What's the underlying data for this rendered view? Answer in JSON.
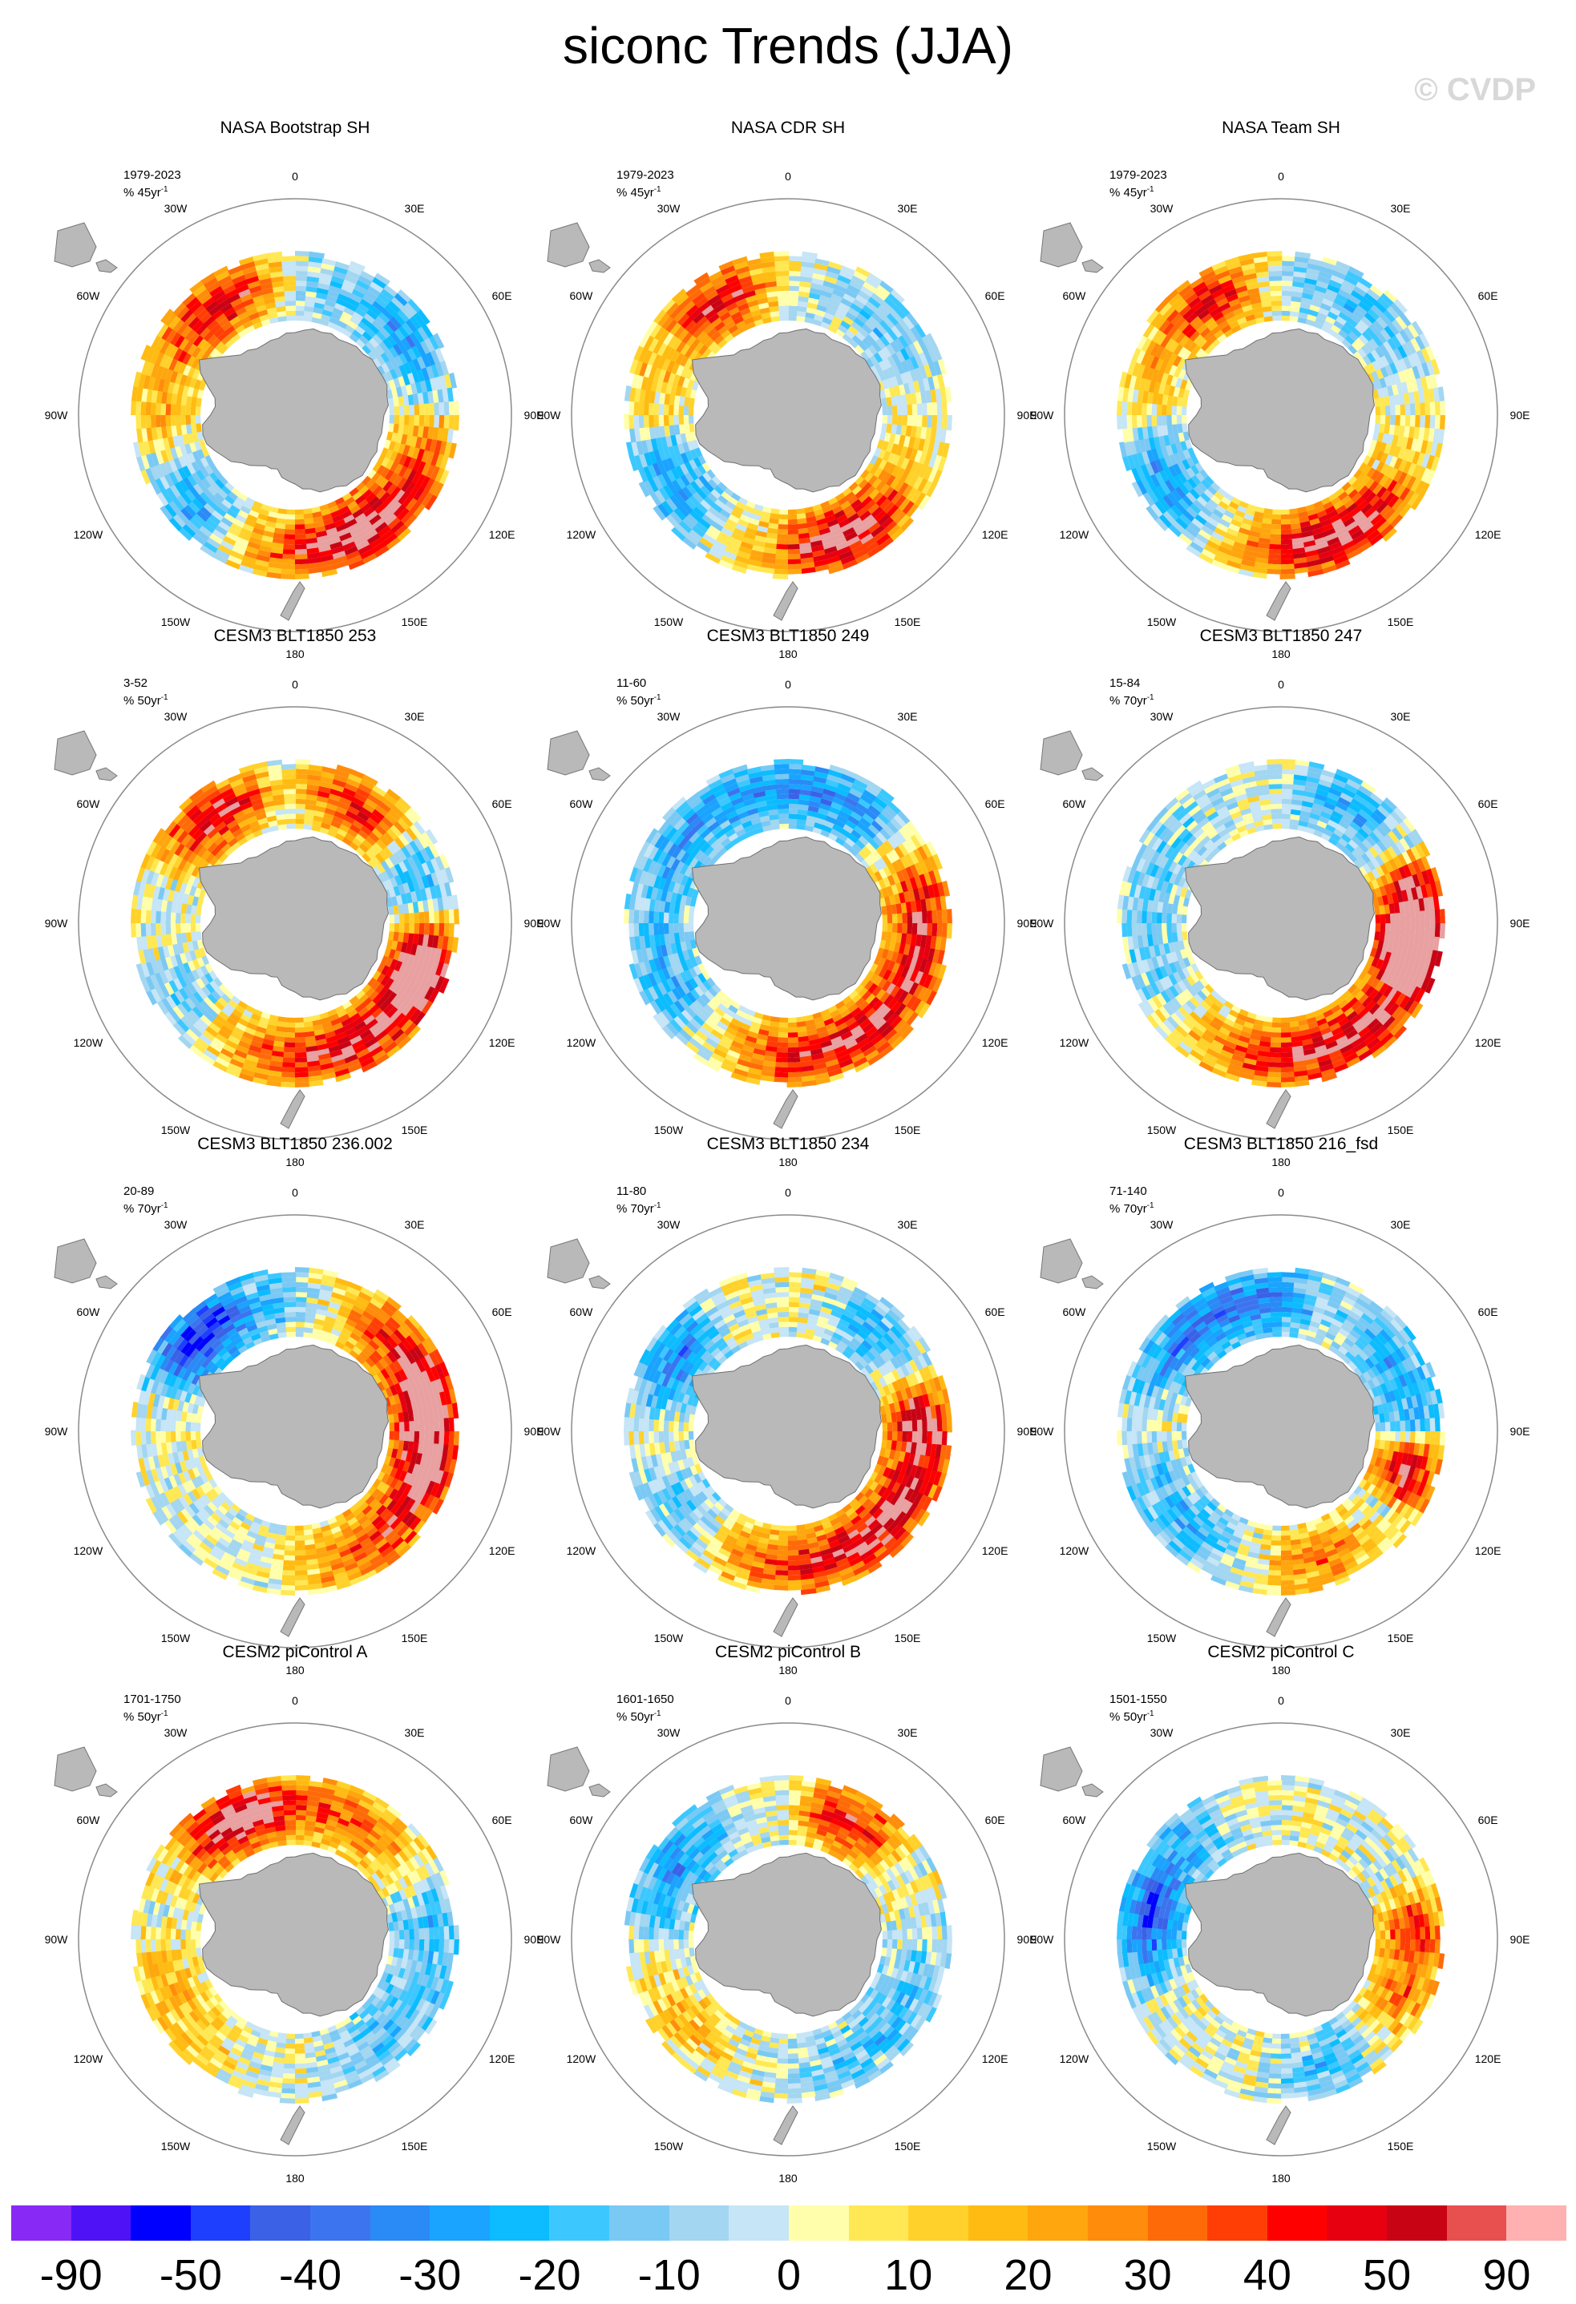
{
  "title": "siconc Trends (JJA)",
  "watermark": "© CVDP",
  "lon_labels": [
    "0",
    "30E",
    "60E",
    "90E",
    "120E",
    "150E",
    "180",
    "150W",
    "120W",
    "90W",
    "60W",
    "30W"
  ],
  "panels": [
    {
      "title": "NASA Bootstrap SH",
      "period": "1979-2023",
      "units": "% 45yr",
      "pattern": [
        [
          "pos",
          125,
          95,
          0.65
        ],
        [
          "pos",
          140,
          55,
          0.55
        ],
        [
          "neg",
          230,
          30,
          0.5
        ],
        [
          "pos",
          290,
          75,
          0.35
        ],
        [
          "pos",
          325,
          35,
          0.55
        ],
        [
          "neg",
          70,
          95,
          0.4
        ],
        [
          "neg",
          60,
          30,
          0.35
        ]
      ]
    },
    {
      "title": "NASA CDR SH",
      "period": "1979-2023",
      "units": "% 45yr",
      "pattern": [
        [
          "pos",
          130,
          85,
          0.6
        ],
        [
          "pos",
          150,
          35,
          0.55
        ],
        [
          "neg",
          235,
          30,
          0.5
        ],
        [
          "pos",
          300,
          45,
          0.35
        ],
        [
          "pos",
          330,
          30,
          0.6
        ],
        [
          "neg",
          80,
          80,
          0.35
        ]
      ]
    },
    {
      "title": "NASA Team SH",
      "period": "1979-2023",
      "units": "% 45yr",
      "pattern": [
        [
          "pos",
          130,
          95,
          0.65
        ],
        [
          "pos",
          150,
          40,
          0.55
        ],
        [
          "neg",
          235,
          35,
          0.5
        ],
        [
          "pos",
          300,
          45,
          0.35
        ],
        [
          "pos",
          330,
          30,
          0.55
        ],
        [
          "neg",
          75,
          95,
          0.4
        ]
      ]
    },
    {
      "title": "CESM3 BLT1850 253",
      "period": "3-52",
      "units": "% 50yr",
      "pattern": [
        [
          "pos",
          140,
          85,
          0.95
        ],
        [
          "pos",
          105,
          25,
          0.85
        ],
        [
          "pos",
          320,
          35,
          0.85
        ],
        [
          "pos",
          25,
          35,
          0.7
        ],
        [
          "neg",
          80,
          40,
          0.55
        ],
        [
          "neg",
          235,
          20,
          0.25
        ]
      ]
    },
    {
      "title": "CESM3 BLT1850 249",
      "period": "11-60",
      "units": "% 50yr",
      "pattern": [
        [
          "pos",
          135,
          95,
          0.95
        ],
        [
          "pos",
          65,
          30,
          0.5
        ],
        [
          "neg",
          0,
          140,
          0.55
        ],
        [
          "pos",
          95,
          30,
          0.35
        ],
        [
          "neg",
          230,
          40,
          0.3
        ]
      ]
    },
    {
      "title": "CESM3 BLT1850 247",
      "period": "15-84",
      "units": "% 70yr",
      "pattern": [
        [
          "pos",
          140,
          100,
          0.95
        ],
        [
          "pos",
          80,
          25,
          0.6
        ],
        [
          "pos",
          100,
          20,
          0.85
        ],
        [
          "neg",
          30,
          40,
          0.4
        ],
        [
          "neg",
          270,
          80,
          0.25
        ]
      ]
    },
    {
      "title": "CESM3 BLT1850 236.002",
      "period": "20-89",
      "units": "% 70yr",
      "pattern": [
        [
          "pos",
          110,
          80,
          0.85
        ],
        [
          "pos",
          70,
          50,
          0.6
        ],
        [
          "neg",
          310,
          30,
          0.9
        ],
        [
          "neg",
          350,
          40,
          0.4
        ],
        [
          "pos",
          20,
          30,
          0.4
        ]
      ]
    },
    {
      "title": "CESM3 BLT1850 234",
      "period": "11-80",
      "units": "% 70yr",
      "pattern": [
        [
          "pos",
          130,
          95,
          0.98
        ],
        [
          "pos",
          80,
          20,
          0.5
        ],
        [
          "neg",
          300,
          30,
          0.6
        ],
        [
          "neg",
          50,
          40,
          0.5
        ],
        [
          "neg",
          230,
          30,
          0.3
        ]
      ]
    },
    {
      "title": "CESM3 BLT1850 216_fsd",
      "period": "71-140",
      "units": "% 70yr",
      "pattern": [
        [
          "neg",
          330,
          60,
          0.7
        ],
        [
          "neg",
          60,
          40,
          0.5
        ],
        [
          "pos",
          105,
          20,
          0.9
        ],
        [
          "pos",
          160,
          30,
          0.5
        ],
        [
          "neg",
          230,
          40,
          0.4
        ]
      ]
    },
    {
      "title": "CESM2 piControl A",
      "period": "1701-1750",
      "units": "% 50yr",
      "pattern": [
        [
          "pos",
          0,
          80,
          0.6
        ],
        [
          "pos",
          330,
          30,
          0.55
        ],
        [
          "neg",
          80,
          40,
          0.35
        ],
        [
          "neg",
          135,
          40,
          0.35
        ],
        [
          "pos",
          240,
          40,
          0.3
        ]
      ]
    },
    {
      "title": "CESM2 piControl B",
      "period": "1601-1650",
      "units": "% 50yr",
      "pattern": [
        [
          "pos",
          25,
          30,
          0.75
        ],
        [
          "neg",
          300,
          40,
          0.55
        ],
        [
          "neg",
          130,
          60,
          0.35
        ],
        [
          "pos",
          230,
          30,
          0.3
        ]
      ]
    },
    {
      "title": "CESM2 piControl C",
      "period": "1501-1550",
      "units": "% 50yr",
      "pattern": [
        [
          "pos",
          110,
          40,
          0.55
        ],
        [
          "pos",
          80,
          20,
          0.45
        ],
        [
          "neg",
          300,
          40,
          0.5
        ],
        [
          "neg",
          270,
          30,
          0.55
        ],
        [
          "neg",
          150,
          40,
          0.35
        ]
      ]
    }
  ],
  "colorbar": {
    "colors": [
      "#8829f6",
      "#4f12f6",
      "#0000ff",
      "#1f3fff",
      "#3a61e6",
      "#3c74f0",
      "#2a8af6",
      "#1aa3ff",
      "#0cbcff",
      "#3cc8ff",
      "#7ac9f4",
      "#a3d6f0",
      "#c6e5f6",
      "#ffffab",
      "#ffe853",
      "#ffd12a",
      "#ffbb12",
      "#ffa60e",
      "#ff8c0a",
      "#ff6a08",
      "#ff3e05",
      "#ff0000",
      "#e60010",
      "#c80414",
      "#e85050",
      "#ffb0b0"
    ],
    "labels": [
      {
        "text": "-90",
        "idx": 1
      },
      {
        "text": "-50",
        "idx": 3
      },
      {
        "text": "-40",
        "idx": 5
      },
      {
        "text": "-30",
        "idx": 7
      },
      {
        "text": "-20",
        "idx": 9
      },
      {
        "text": "-10",
        "idx": 11
      },
      {
        "text": "0",
        "idx": 13
      },
      {
        "text": "10",
        "idx": 15
      },
      {
        "text": "20",
        "idx": 17
      },
      {
        "text": "30",
        "idx": 19
      },
      {
        "text": "40",
        "idx": 21
      },
      {
        "text": "50",
        "idx": 23
      },
      {
        "text": "90",
        "idx": 25
      }
    ]
  }
}
